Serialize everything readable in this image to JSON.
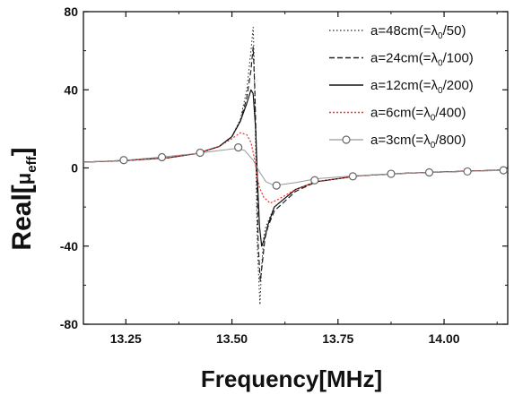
{
  "chart_data": {
    "type": "line",
    "xlabel": "Frequency[MHz]",
    "ylabel": {
      "prefix": "Real[",
      "symbol": "μ",
      "subscript": "eff",
      "suffix": "]"
    },
    "xlim": [
      13.15,
      14.15
    ],
    "ylim": [
      -80,
      80
    ],
    "xticks": [
      {
        "value": 13.25,
        "label": "13.25"
      },
      {
        "value": 13.5,
        "label": "13.50"
      },
      {
        "value": 13.75,
        "label": "13.75"
      },
      {
        "value": 14.0,
        "label": "14.00"
      }
    ],
    "yticks": [
      {
        "value": -80,
        "label": "-80"
      },
      {
        "value": -40,
        "label": "-40"
      },
      {
        "value": 0,
        "label": "0"
      },
      {
        "value": 40,
        "label": "40"
      },
      {
        "value": 80,
        "label": "80"
      }
    ],
    "grid": false,
    "legend_position": "top-right",
    "series": [
      {
        "name": "a=48cm(=λ0/50)",
        "legend": {
          "prefix": "a=48cm(=λ",
          "sub": "0",
          "suffix": "/50)"
        },
        "color": "#222222",
        "dash": "1.5,2.5",
        "width": 1,
        "marker": "none",
        "x": [
          13.15,
          13.25,
          13.35,
          13.42,
          13.47,
          13.5,
          13.52,
          13.535,
          13.545,
          13.55,
          13.552,
          13.556,
          13.56,
          13.566,
          13.57,
          13.575,
          13.58,
          13.6,
          13.65,
          13.7,
          13.8,
          13.9,
          14.0,
          14.15
        ],
        "y": [
          3.0,
          3.8,
          5.2,
          7.5,
          11,
          16,
          25,
          40,
          60,
          72,
          60,
          10,
          -40,
          -70,
          -50,
          -35,
          -30,
          -20,
          -11,
          -7,
          -4,
          -2.8,
          -2,
          -1
        ]
      },
      {
        "name": "a=24cm(=λ0/100)",
        "legend": {
          "prefix": "a=24cm(=λ",
          "sub": "0",
          "suffix": "/100)"
        },
        "color": "#222222",
        "dash": "6,3",
        "width": 1.2,
        "marker": "none",
        "x": [
          13.15,
          13.25,
          13.35,
          13.42,
          13.47,
          13.5,
          13.52,
          13.535,
          13.545,
          13.55,
          13.554,
          13.558,
          13.562,
          13.567,
          13.572,
          13.578,
          13.585,
          13.6,
          13.65,
          13.7,
          13.8,
          13.9,
          14.0,
          14.15
        ],
        "y": [
          3.0,
          3.8,
          5.2,
          7.5,
          11,
          16,
          24,
          36,
          50,
          62,
          40,
          5,
          -40,
          -58,
          -48,
          -36,
          -30,
          -22,
          -12,
          -7,
          -4,
          -2.8,
          -2,
          -1
        ]
      },
      {
        "name": "a=12cm(=λ0/200)",
        "legend": {
          "prefix": "a=12cm(=λ",
          "sub": "0",
          "suffix": "/200)"
        },
        "color": "#111111",
        "dash": "",
        "width": 1.2,
        "marker": "none",
        "x": [
          13.15,
          13.25,
          13.35,
          13.42,
          13.47,
          13.5,
          13.52,
          13.535,
          13.545,
          13.55,
          13.556,
          13.56,
          13.565,
          13.57,
          13.577,
          13.585,
          13.6,
          13.65,
          13.7,
          13.8,
          13.9,
          14.0,
          14.15
        ],
        "y": [
          3.0,
          3.8,
          5.2,
          7.5,
          11,
          16,
          24,
          33,
          40,
          38,
          20,
          -5,
          -30,
          -40,
          -36,
          -29,
          -20,
          -11,
          -7,
          -4,
          -2.8,
          -2,
          -1
        ]
      },
      {
        "name": "a=6cm(=λ0/400)",
        "legend": {
          "prefix": "a=6cm(=λ",
          "sub": "0",
          "suffix": "/400)"
        },
        "color": "#e8302a",
        "dash": "2,2",
        "width": 1.2,
        "marker": "none",
        "x": [
          13.15,
          13.25,
          13.35,
          13.42,
          13.47,
          13.5,
          13.52,
          13.535,
          13.545,
          13.553,
          13.56,
          13.565,
          13.575,
          13.59,
          13.61,
          13.65,
          13.7,
          13.8,
          13.9,
          14.0,
          14.15
        ],
        "y": [
          3.0,
          3.8,
          5.2,
          7.5,
          11,
          15,
          18,
          17,
          13,
          5,
          -5,
          -10,
          -15,
          -18,
          -16,
          -11,
          -7,
          -4,
          -2.8,
          -2,
          -1
        ]
      },
      {
        "name": "a=3cm(=λ0/800)",
        "legend": {
          "prefix": "a=3cm(=λ",
          "sub": "0",
          "suffix": "/800)"
        },
        "color": "#999999",
        "dash": "",
        "width": 1,
        "marker": "circle",
        "x": [
          13.15,
          13.25,
          13.33,
          13.42,
          13.51,
          13.53,
          13.55,
          13.565,
          13.58,
          13.6,
          13.65,
          13.7,
          13.79,
          13.88,
          13.97,
          14.05,
          14.15
        ],
        "y": [
          3.0,
          4.0,
          5.5,
          7.5,
          10,
          9,
          4,
          -2,
          -7,
          -9,
          -7.5,
          -5.5,
          -4,
          -3,
          -2.3,
          -1.8,
          -1.2
        ],
        "marker_x": [
          13.245,
          13.335,
          13.425,
          13.515,
          13.605,
          13.695,
          13.785,
          13.875,
          13.965,
          14.055,
          14.14
        ],
        "marker_y": [
          4.0,
          5.5,
          7.8,
          10.5,
          -9,
          -6.3,
          -4.3,
          -3.0,
          -2.3,
          -1.8,
          -1.2
        ]
      }
    ]
  }
}
